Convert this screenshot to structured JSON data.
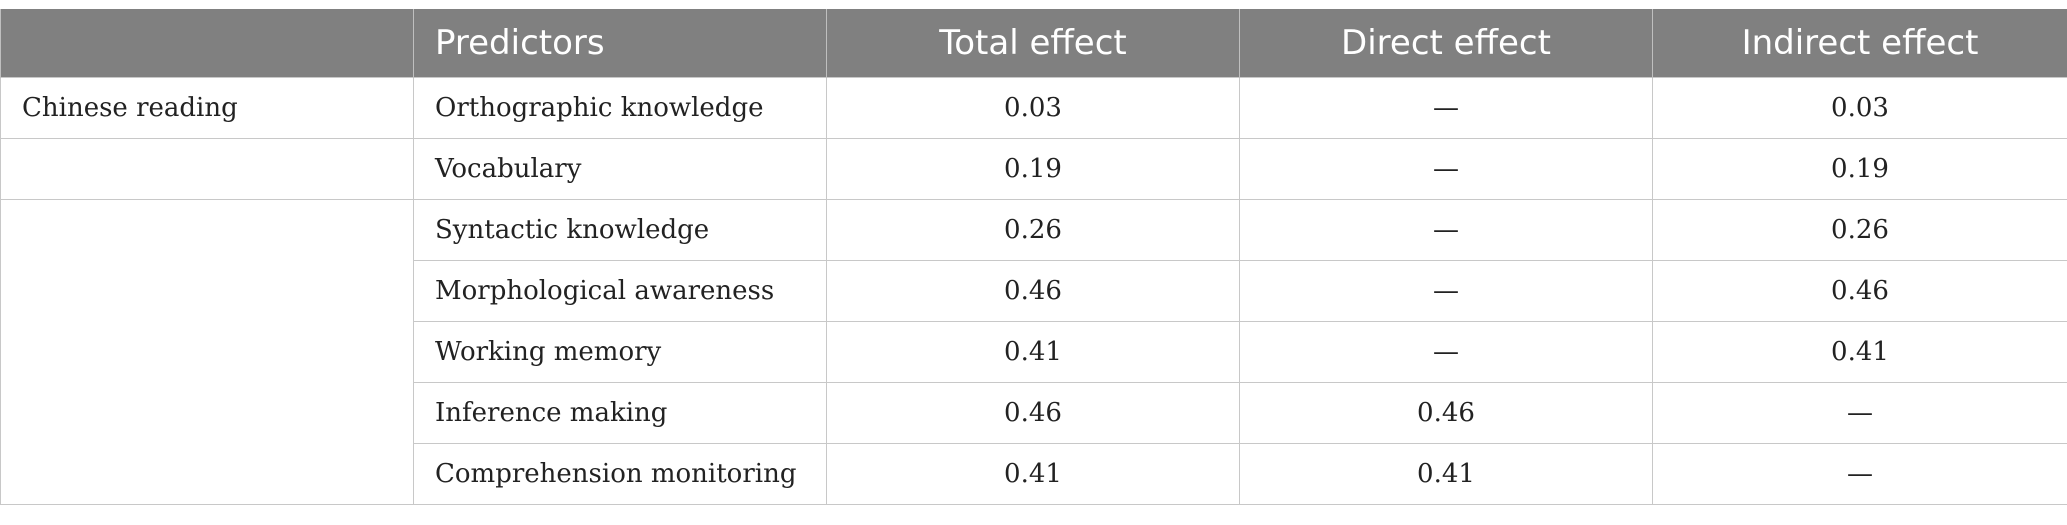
{
  "table": {
    "headers": [
      "",
      "Predictors",
      "Total effect",
      "Direct effect",
      "Indirect effect"
    ],
    "rows": [
      {
        "group": "Chinese reading",
        "predictor": "Orthographic knowledge",
        "total": "0.03",
        "direct": "—",
        "indirect": "0.03"
      },
      {
        "group": "",
        "predictor": "Vocabulary",
        "total": "0.19",
        "direct": "—",
        "indirect": "0.19"
      },
      {
        "group": "",
        "predictor": "Syntactic knowledge",
        "total": "0.26",
        "direct": "—",
        "indirect": "0.26"
      },
      {
        "group": "",
        "predictor": "Morphological awareness",
        "total": "0.46",
        "direct": "—",
        "indirect": "0.46"
      },
      {
        "group": "",
        "predictor": "Working memory",
        "total": "0.41",
        "direct": "—",
        "indirect": "0.41"
      },
      {
        "group": "",
        "predictor": "Inference making",
        "total": "0.46",
        "direct": "0.46",
        "indirect": "—"
      },
      {
        "group": "",
        "predictor": "Comprehension monitoring",
        "total": "0.41",
        "direct": "0.41",
        "indirect": "—"
      }
    ]
  }
}
